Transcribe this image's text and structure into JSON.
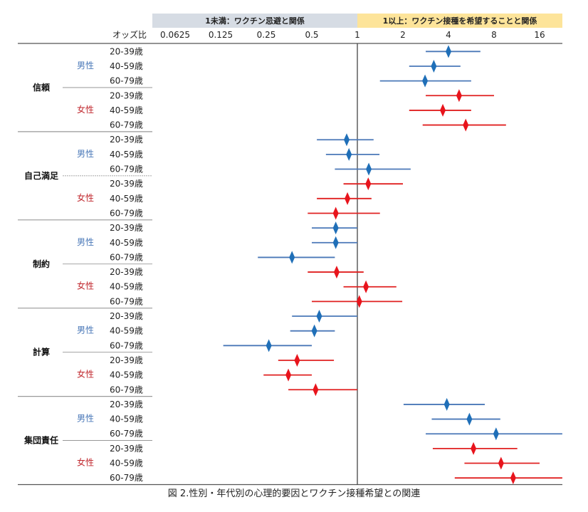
{
  "chart_data": {
    "type": "forest",
    "scale": "log2",
    "xlim": [
      0.0625,
      22.6
    ],
    "reference_line": 1,
    "header_left": "1未満：ワクチン忌避と関係",
    "header_right": "1以上：ワクチン接種を希望することと関係",
    "axis_label": "オッズ比",
    "ticks": [
      "0.0625",
      "0.125",
      "0.25",
      "0.5",
      "1",
      "2",
      "4",
      "8",
      "16"
    ],
    "tick_values": [
      0.0625,
      0.125,
      0.25,
      0.5,
      1,
      2,
      4,
      8,
      16
    ],
    "caption": "図 2.性別・年代別の心理的要因とワクチン接種希望との関連",
    "sex_labels": {
      "male": "男性",
      "female": "女性"
    },
    "age_labels": [
      "20-39歳",
      "40-59歳",
      "60-79歳"
    ],
    "colors": {
      "male": "#1f6fb8",
      "male_line": "#4a78b8",
      "female": "#e8141c",
      "female_line": "#e02020",
      "header_left_bg": "#d6dce4",
      "header_right_bg": "#fde49a"
    },
    "groups": [
      {
        "name": "信頼",
        "male": [
          {
            "or": 4.0,
            "lo": 2.83,
            "hi": 6.5
          },
          {
            "or": 3.2,
            "lo": 2.2,
            "hi": 4.8
          },
          {
            "or": 2.8,
            "lo": 1.41,
            "hi": 5.65
          }
        ],
        "female": [
          {
            "or": 4.7,
            "lo": 2.83,
            "hi": 8.0
          },
          {
            "or": 3.67,
            "lo": 2.2,
            "hi": 5.65
          },
          {
            "or": 5.2,
            "lo": 2.7,
            "hi": 9.6
          }
        ]
      },
      {
        "name": "自己満足",
        "male": [
          {
            "or": 0.85,
            "lo": 0.54,
            "hi": 1.28
          },
          {
            "or": 0.88,
            "lo": 0.62,
            "hi": 1.4
          },
          {
            "or": 1.19,
            "lo": 0.71,
            "hi": 2.25
          }
        ],
        "female": [
          {
            "or": 1.18,
            "lo": 0.81,
            "hi": 2.0
          },
          {
            "or": 0.86,
            "lo": 0.54,
            "hi": 1.24
          },
          {
            "or": 0.72,
            "lo": 0.47,
            "hi": 1.41
          }
        ]
      },
      {
        "name": "制約",
        "male": [
          {
            "or": 0.72,
            "lo": 0.5,
            "hi": 1.0
          },
          {
            "or": 0.72,
            "lo": 0.5,
            "hi": 1.0
          },
          {
            "or": 0.37,
            "lo": 0.22,
            "hi": 0.71
          }
        ],
        "female": [
          {
            "or": 0.73,
            "lo": 0.47,
            "hi": 1.1
          },
          {
            "or": 1.14,
            "lo": 0.81,
            "hi": 1.81
          },
          {
            "or": 1.03,
            "lo": 0.5,
            "hi": 1.98
          }
        ]
      },
      {
        "name": "計算",
        "male": [
          {
            "or": 0.56,
            "lo": 0.37,
            "hi": 1.0
          },
          {
            "or": 0.52,
            "lo": 0.36,
            "hi": 0.71
          },
          {
            "or": 0.26,
            "lo": 0.13,
            "hi": 0.5
          }
        ],
        "female": [
          {
            "or": 0.4,
            "lo": 0.3,
            "hi": 0.7
          },
          {
            "or": 0.35,
            "lo": 0.24,
            "hi": 0.5
          },
          {
            "or": 0.53,
            "lo": 0.35,
            "hi": 1.0
          }
        ]
      },
      {
        "name": "集団責任",
        "male": [
          {
            "or": 3.9,
            "lo": 2.02,
            "hi": 6.95
          },
          {
            "or": 5.5,
            "lo": 3.1,
            "hi": 8.8
          },
          {
            "or": 8.25,
            "lo": 2.83,
            "hi": 22.6
          }
        ],
        "female": [
          {
            "or": 5.85,
            "lo": 3.15,
            "hi": 11.4
          },
          {
            "or": 8.9,
            "lo": 5.1,
            "hi": 16.0
          },
          {
            "or": 10.7,
            "lo": 4.4,
            "hi": 22.6
          }
        ]
      }
    ]
  }
}
